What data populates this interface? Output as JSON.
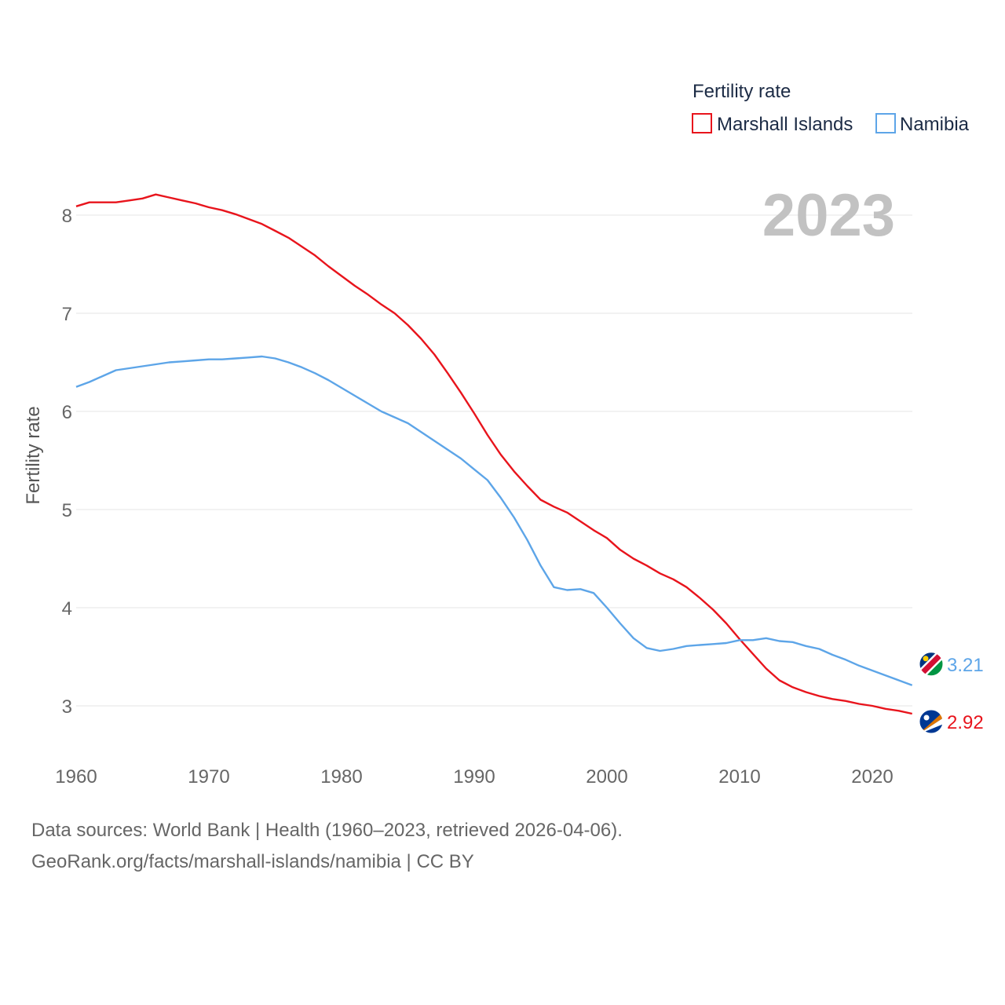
{
  "chart_data": {
    "type": "line",
    "legend_title": "Fertility rate",
    "legend_position": "top-right",
    "ylabel": "Fertility rate",
    "xlabel": "",
    "year_label": "2023",
    "xlim": [
      1960,
      2023
    ],
    "ylim": [
      2.5,
      8.5
    ],
    "x_ticks": [
      {
        "value": 1960,
        "label": "1960"
      },
      {
        "value": 1970,
        "label": "1970"
      },
      {
        "value": 1980,
        "label": "1980"
      },
      {
        "value": 1990,
        "label": "1990"
      },
      {
        "value": 2000,
        "label": "2000"
      },
      {
        "value": 2010,
        "label": "2010"
      },
      {
        "value": 2020,
        "label": "2020"
      }
    ],
    "y_ticks": [
      {
        "value": 3,
        "label": "3"
      },
      {
        "value": 4,
        "label": "4"
      },
      {
        "value": 5,
        "label": "5"
      },
      {
        "value": 6,
        "label": "6"
      },
      {
        "value": 7,
        "label": "7"
      },
      {
        "value": 8,
        "label": "8"
      }
    ],
    "grid": true,
    "x": [
      1960,
      1961,
      1962,
      1963,
      1964,
      1965,
      1966,
      1967,
      1968,
      1969,
      1970,
      1971,
      1972,
      1973,
      1974,
      1975,
      1976,
      1977,
      1978,
      1979,
      1980,
      1981,
      1982,
      1983,
      1984,
      1985,
      1986,
      1987,
      1988,
      1989,
      1990,
      1991,
      1992,
      1993,
      1994,
      1995,
      1996,
      1997,
      1998,
      1999,
      2000,
      2001,
      2002,
      2003,
      2004,
      2005,
      2006,
      2007,
      2008,
      2009,
      2010,
      2011,
      2012,
      2013,
      2014,
      2015,
      2016,
      2017,
      2018,
      2019,
      2020,
      2021,
      2022,
      2023
    ],
    "series": [
      {
        "name": "Marshall Islands",
        "color": "#e8141c",
        "end_label": "2.92",
        "flag": "marshall-islands-flag",
        "values": [
          8.09,
          8.13,
          8.13,
          8.13,
          8.15,
          8.17,
          8.21,
          8.18,
          8.15,
          8.12,
          8.08,
          8.05,
          8.01,
          7.96,
          7.91,
          7.84,
          7.77,
          7.68,
          7.59,
          7.48,
          7.38,
          7.28,
          7.19,
          7.09,
          7.0,
          6.88,
          6.74,
          6.58,
          6.39,
          6.19,
          5.98,
          5.76,
          5.56,
          5.39,
          5.24,
          5.1,
          5.03,
          4.97,
          4.88,
          4.79,
          4.71,
          4.59,
          4.5,
          4.43,
          4.35,
          4.29,
          4.21,
          4.1,
          3.98,
          3.84,
          3.68,
          3.53,
          3.38,
          3.26,
          3.19,
          3.14,
          3.1,
          3.07,
          3.05,
          3.02,
          3.0,
          2.97,
          2.95,
          2.92
        ]
      },
      {
        "name": "Namibia",
        "color": "#5da5e8",
        "end_label": "3.21",
        "flag": "namibia-flag",
        "values": [
          6.25,
          6.3,
          6.36,
          6.42,
          6.44,
          6.46,
          6.48,
          6.5,
          6.51,
          6.52,
          6.53,
          6.53,
          6.54,
          6.55,
          6.56,
          6.54,
          6.5,
          6.45,
          6.39,
          6.32,
          6.24,
          6.16,
          6.08,
          6.0,
          5.94,
          5.88,
          5.79,
          5.7,
          5.61,
          5.52,
          5.41,
          5.3,
          5.12,
          4.92,
          4.69,
          4.43,
          4.21,
          4.18,
          4.19,
          4.15,
          4.0,
          3.84,
          3.69,
          3.59,
          3.56,
          3.58,
          3.61,
          3.62,
          3.63,
          3.64,
          3.67,
          3.67,
          3.69,
          3.66,
          3.65,
          3.61,
          3.58,
          3.52,
          3.47,
          3.41,
          3.36,
          3.31,
          3.26,
          3.21
        ]
      }
    ]
  },
  "footer": {
    "sources": "Data sources: World Bank | Health (1960–2023, retrieved 2026-04-06).",
    "url": "GeoRank.org/facts/marshall-islands/namibia | CC BY"
  }
}
